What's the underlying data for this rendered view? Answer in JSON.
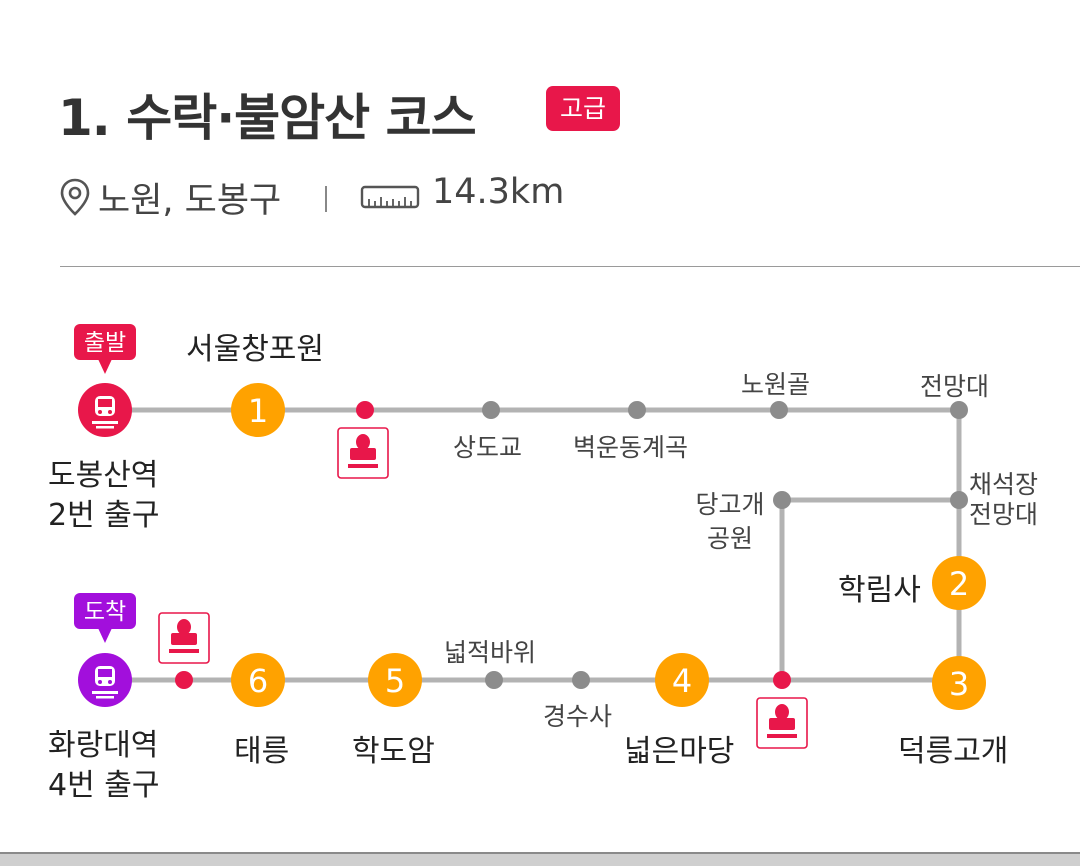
{
  "header": {
    "title": "1. 수락·불암산 코스",
    "level_badge": "고급",
    "location": "노원, 도봉구",
    "distance": "14.3km"
  },
  "colors": {
    "accent_red": "#e8174a",
    "accent_purple": "#a20fdc",
    "waypoint_orange": "#ffa200",
    "route_gray": "#b3b3b3",
    "stop_gray": "#8c8c8c"
  },
  "route": {
    "start_tag": "출발",
    "end_tag": "도착",
    "start_station": [
      "도봉산역",
      "2번 출구"
    ],
    "end_station": [
      "화랑대역",
      "4번 출구"
    ],
    "numbered": [
      {
        "num": "1",
        "name": "서울창포원"
      },
      {
        "num": "2",
        "name": "학림사"
      },
      {
        "num": "3",
        "name": "덕릉고개"
      },
      {
        "num": "4",
        "name": "넓은마당"
      },
      {
        "num": "5",
        "name": "학도암"
      },
      {
        "num": "6",
        "name": "태릉"
      }
    ],
    "stops": {
      "sangdogyo": "상도교",
      "byeogundong": "벽운동계곡",
      "nowongol": "노원골",
      "jeonmangdae": "전망대",
      "chaeseokjang": [
        "채석장",
        "전망대"
      ],
      "danggogae": [
        "당고개",
        "공원"
      ],
      "neopjeokbawi": "넓적바위",
      "gyeongsusa": "경수사"
    }
  }
}
